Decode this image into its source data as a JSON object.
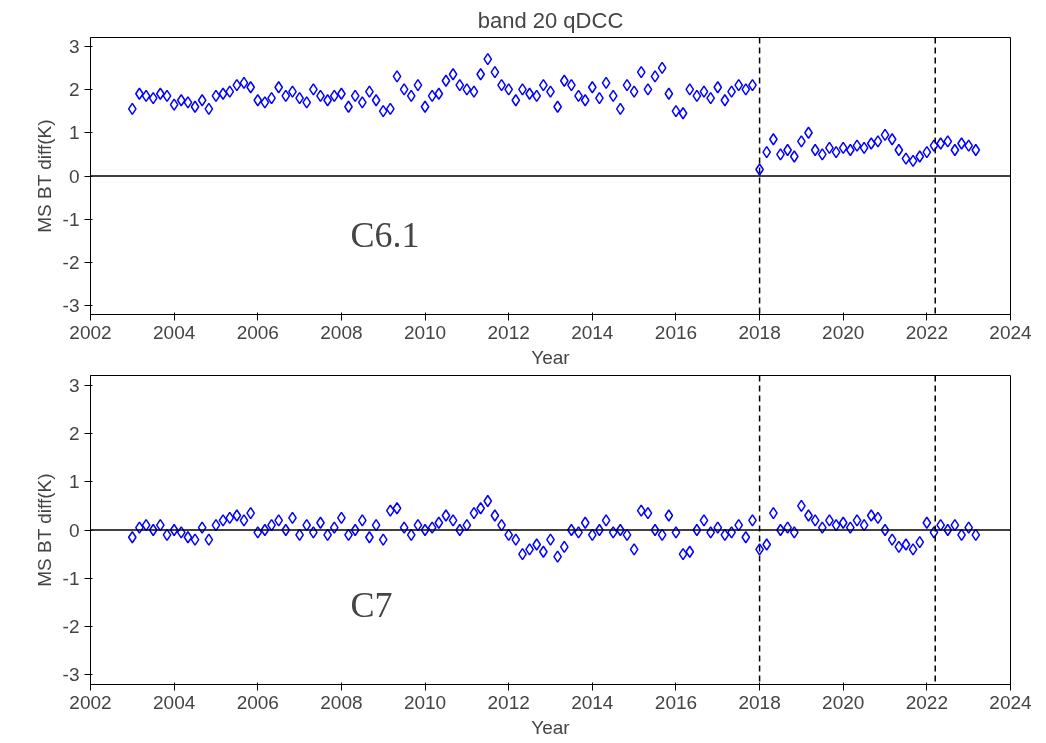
{
  "chart_data": [
    {
      "type": "scatter",
      "title": "band 20 qDCC",
      "xlabel": "Year",
      "ylabel": "MS BT diff(K)",
      "marker": "diamond",
      "grid": false,
      "xlim": [
        2002,
        2024
      ],
      "xticks": [
        2002,
        2004,
        2006,
        2008,
        2010,
        2012,
        2014,
        2016,
        2018,
        2020,
        2022,
        2024
      ],
      "ylim": [
        -3.2,
        3.2
      ],
      "yticks": [
        -3,
        -2,
        -1,
        0,
        1,
        2,
        3
      ],
      "annotations": [
        "C6.1"
      ],
      "x": [
        2003,
        2003.17,
        2003.33,
        2003.5,
        2003.67,
        2003.83,
        2004,
        2004.17,
        2004.33,
        2004.5,
        2004.67,
        2004.83,
        2005,
        2005.17,
        2005.33,
        2005.5,
        2005.67,
        2005.83,
        2006,
        2006.17,
        2006.33,
        2006.5,
        2006.67,
        2006.83,
        2007,
        2007.17,
        2007.33,
        2007.5,
        2007.67,
        2007.83,
        2008,
        2008.17,
        2008.33,
        2008.5,
        2008.67,
        2008.83,
        2009,
        2009.17,
        2009.33,
        2009.5,
        2009.67,
        2009.83,
        2010,
        2010.17,
        2010.33,
        2010.5,
        2010.67,
        2010.83,
        2011,
        2011.17,
        2011.33,
        2011.5,
        2011.67,
        2011.83,
        2012,
        2012.17,
        2012.33,
        2012.5,
        2012.67,
        2012.83,
        2013,
        2013.17,
        2013.33,
        2013.5,
        2013.67,
        2013.83,
        2014,
        2014.17,
        2014.33,
        2014.5,
        2014.67,
        2014.83,
        2015,
        2015.17,
        2015.33,
        2015.5,
        2015.67,
        2015.83,
        2016,
        2016.17,
        2016.33,
        2016.5,
        2016.67,
        2016.83,
        2017,
        2017.17,
        2017.33,
        2017.5,
        2017.67,
        2017.83,
        2018,
        2018.17,
        2018.33,
        2018.5,
        2018.67,
        2018.83,
        2019,
        2019.17,
        2019.33,
        2019.5,
        2019.67,
        2019.83,
        2020,
        2020.17,
        2020.33,
        2020.5,
        2020.67,
        2020.83,
        2021,
        2021.17,
        2021.33,
        2021.5,
        2021.67,
        2021.83,
        2022,
        2022.17,
        2022.33,
        2022.5,
        2022.67,
        2022.83,
        2023,
        2023.17
      ],
      "ref_lines": [
        {
          "axis": "y",
          "value": 0,
          "color": "#000000",
          "line_style": "solid"
        },
        {
          "axis": "x",
          "value": 2018.0,
          "color": "#000000",
          "line_style": "dashed"
        },
        {
          "axis": "x",
          "value": 2022.2,
          "color": "#000000",
          "line_style": "dashed"
        }
      ],
      "series": [
        {
          "color": "#0000ff",
          "values": [
            1.55,
            1.9,
            1.85,
            1.8,
            1.9,
            1.85,
            1.65,
            1.75,
            1.7,
            1.6,
            1.75,
            1.55,
            1.85,
            1.9,
            1.95,
            2.1,
            2.15,
            2.05,
            1.75,
            1.7,
            1.8,
            2.05,
            1.85,
            1.95,
            1.8,
            1.7,
            2.0,
            1.85,
            1.75,
            1.85,
            1.9,
            1.6,
            1.85,
            1.7,
            1.95,
            1.75,
            1.5,
            1.55,
            2.3,
            2.0,
            1.85,
            2.1,
            1.6,
            1.85,
            1.9,
            2.2,
            2.35,
            2.1,
            2.0,
            1.95,
            2.35,
            2.7,
            2.4,
            2.1,
            2.0,
            1.75,
            2.0,
            1.9,
            1.85,
            2.1,
            1.95,
            1.6,
            2.2,
            2.1,
            1.85,
            1.75,
            2.05,
            1.8,
            2.15,
            1.85,
            1.55,
            2.1,
            1.95,
            2.4,
            2.0,
            2.3,
            2.5,
            1.9,
            1.5,
            1.45,
            2.0,
            1.85,
            1.95,
            1.8,
            2.05,
            1.75,
            1.95,
            2.1,
            2.0,
            2.1,
            0.15,
            0.55,
            0.85,
            0.5,
            0.6,
            0.45,
            0.8,
            1.0,
            0.6,
            0.5,
            0.65,
            0.55,
            0.65,
            0.6,
            0.7,
            0.65,
            0.75,
            0.8,
            0.95,
            0.85,
            0.6,
            0.4,
            0.35,
            0.45,
            0.55,
            0.7,
            0.75,
            0.8,
            0.6,
            0.75,
            0.7,
            0.6
          ]
        }
      ]
    },
    {
      "type": "scatter",
      "xlabel": "Year",
      "ylabel": "MS BT diff(K)",
      "marker": "diamond",
      "grid": false,
      "xlim": [
        2002,
        2024
      ],
      "xticks": [
        2002,
        2004,
        2006,
        2008,
        2010,
        2012,
        2014,
        2016,
        2018,
        2020,
        2022,
        2024
      ],
      "ylim": [
        -3.2,
        3.2
      ],
      "yticks": [
        -3,
        -2,
        -1,
        0,
        1,
        2,
        3
      ],
      "annotations": [
        "C7"
      ],
      "x": [
        2003,
        2003.17,
        2003.33,
        2003.5,
        2003.67,
        2003.83,
        2004,
        2004.17,
        2004.33,
        2004.5,
        2004.67,
        2004.83,
        2005,
        2005.17,
        2005.33,
        2005.5,
        2005.67,
        2005.83,
        2006,
        2006.17,
        2006.33,
        2006.5,
        2006.67,
        2006.83,
        2007,
        2007.17,
        2007.33,
        2007.5,
        2007.67,
        2007.83,
        2008,
        2008.17,
        2008.33,
        2008.5,
        2008.67,
        2008.83,
        2009,
        2009.17,
        2009.33,
        2009.5,
        2009.67,
        2009.83,
        2010,
        2010.17,
        2010.33,
        2010.5,
        2010.67,
        2010.83,
        2011,
        2011.17,
        2011.33,
        2011.5,
        2011.67,
        2011.83,
        2012,
        2012.17,
        2012.33,
        2012.5,
        2012.67,
        2012.83,
        2013,
        2013.17,
        2013.33,
        2013.5,
        2013.67,
        2013.83,
        2014,
        2014.17,
        2014.33,
        2014.5,
        2014.67,
        2014.83,
        2015,
        2015.17,
        2015.33,
        2015.5,
        2015.67,
        2015.83,
        2016,
        2016.17,
        2016.33,
        2016.5,
        2016.67,
        2016.83,
        2017,
        2017.17,
        2017.33,
        2017.5,
        2017.67,
        2017.83,
        2018,
        2018.17,
        2018.33,
        2018.5,
        2018.67,
        2018.83,
        2019,
        2019.17,
        2019.33,
        2019.5,
        2019.67,
        2019.83,
        2020,
        2020.17,
        2020.33,
        2020.5,
        2020.67,
        2020.83,
        2021,
        2021.17,
        2021.33,
        2021.5,
        2021.67,
        2021.83,
        2022,
        2022.17,
        2022.33,
        2022.5,
        2022.67,
        2022.83,
        2023,
        2023.17
      ],
      "ref_lines": [
        {
          "axis": "y",
          "value": 0,
          "color": "#000000",
          "line_style": "solid"
        },
        {
          "axis": "x",
          "value": 2018.0,
          "color": "#000000",
          "line_style": "dashed"
        },
        {
          "axis": "x",
          "value": 2022.2,
          "color": "#000000",
          "line_style": "dashed"
        }
      ],
      "series": [
        {
          "color": "#0000ff",
          "values": [
            -0.15,
            0.05,
            0.1,
            0.0,
            0.1,
            -0.1,
            0.0,
            -0.05,
            -0.15,
            -0.2,
            0.05,
            -0.2,
            0.1,
            0.2,
            0.25,
            0.3,
            0.2,
            0.35,
            -0.05,
            0.0,
            0.1,
            0.2,
            0.0,
            0.25,
            -0.1,
            0.1,
            -0.05,
            0.15,
            -0.1,
            0.05,
            0.25,
            -0.1,
            0.0,
            0.2,
            -0.15,
            0.1,
            -0.2,
            0.4,
            0.45,
            0.05,
            -0.1,
            0.1,
            0.0,
            0.05,
            0.15,
            0.3,
            0.2,
            0.0,
            0.1,
            0.35,
            0.45,
            0.6,
            0.3,
            0.1,
            -0.1,
            -0.2,
            -0.5,
            -0.4,
            -0.3,
            -0.45,
            -0.2,
            -0.55,
            -0.35,
            0.0,
            -0.05,
            0.15,
            -0.1,
            0.0,
            0.2,
            -0.05,
            0.0,
            -0.1,
            -0.4,
            0.4,
            0.35,
            0.0,
            -0.1,
            0.3,
            -0.05,
            -0.5,
            -0.45,
            0.0,
            0.2,
            -0.05,
            0.05,
            -0.1,
            -0.05,
            0.1,
            -0.15,
            0.2,
            -0.4,
            -0.3,
            0.35,
            0.0,
            0.05,
            -0.05,
            0.5,
            0.3,
            0.2,
            0.05,
            0.2,
            0.1,
            0.15,
            0.05,
            0.2,
            0.1,
            0.3,
            0.25,
            0.0,
            -0.2,
            -0.35,
            -0.3,
            -0.4,
            -0.25,
            0.15,
            -0.05,
            0.1,
            0.0,
            0.1,
            -0.1,
            0.05,
            -0.1
          ]
        }
      ]
    }
  ]
}
